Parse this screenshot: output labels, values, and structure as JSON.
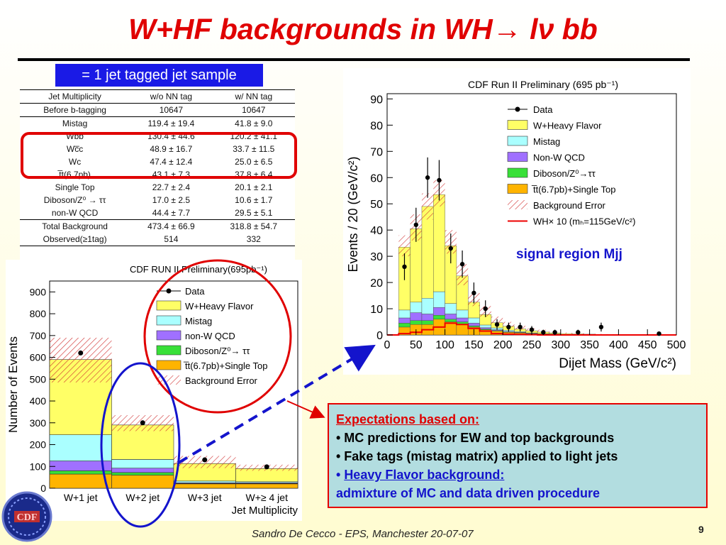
{
  "slide": {
    "title": "W+HF backgrounds in WH→ lν bb",
    "tag_box": "= 1 jet tagged jet sample",
    "signal_label": "signal region Mjj",
    "footer": "Sandro De Cecco  -  EPS, Manchester 20-07-07",
    "page_number": "9",
    "expectations": {
      "heading": "Expectations based on:",
      "bullets": [
        "• MC predictions for EW and top backgrounds",
        "• Fake tags (mistag matrix) applied to light jets"
      ],
      "hf_prefix": "• ",
      "hf_label": "Heavy Flavor background:",
      "hf_text": "admixture of MC and data driven procedure"
    },
    "colors": {
      "title": "#e00000",
      "accent_blue": "#1a1ae6",
      "highlight_red": "#e00000"
    }
  },
  "table": {
    "header": [
      "Jet Multiplicity",
      "w/o NN tag",
      "w/ NN tag"
    ],
    "rows": [
      [
        "Before b-tagging",
        "10647",
        "10647"
      ],
      [
        "Mistag",
        "119.4 ± 19.4",
        "41.8 ± 9.0"
      ],
      [
        "Wbb",
        "130.4 ± 44.6",
        "120.2 ± 41.1"
      ],
      [
        "Wc̅c",
        "48.9 ± 16.7",
        "33.7 ± 11.5"
      ],
      [
        "Wc",
        "47.4 ± 12.4",
        "25.0 ± 6.5"
      ],
      [
        "t̅t(6.7pb)",
        "43.1 ± 7.3",
        "37.8 ± 6.4"
      ],
      [
        "Single Top",
        "22.7 ± 2.4",
        "20.1 ± 2.1"
      ],
      [
        "Diboson/Z⁰ → ττ",
        "17.0 ± 2.5",
        "10.6 ± 1.7"
      ],
      [
        "non-W QCD",
        "44.4 ± 7.7",
        "29.5 ± 5.1"
      ],
      [
        "Total Background",
        "473.4 ± 66.9",
        "318.8 ± 54.7"
      ],
      [
        "Observed(≥1tag)",
        "514",
        "332"
      ]
    ]
  },
  "chart_data": [
    {
      "type": "bar",
      "title": "CDF RUN II Preliminary(695pb⁻¹)",
      "xlabel": "Jet Multiplicity",
      "ylabel": "Number of Events",
      "categories": [
        "W+1 jet",
        "W+2 jet",
        "W+3 jet",
        "W+≥ 4 jet"
      ],
      "ylim": [
        0,
        950
      ],
      "yticks": [
        0,
        100,
        200,
        300,
        400,
        500,
        600,
        700,
        800,
        900
      ],
      "stack_bottom_to_top": true,
      "series": [
        {
          "name": "t̅t(6.7pb)+Single Top",
          "color": "#ffb400",
          "values": [
            65,
            60,
            20,
            20
          ]
        },
        {
          "name": "Diboson/Z⁰→ ττ",
          "color": "#38e038",
          "values": [
            15,
            12,
            2,
            2
          ]
        },
        {
          "name": "non-W QCD",
          "color": "#a070ff",
          "values": [
            45,
            20,
            3,
            3
          ]
        },
        {
          "name": "Mistag",
          "color": "#aaffff",
          "values": [
            120,
            40,
            8,
            5
          ]
        },
        {
          "name": "W+Heavy Flavor",
          "color": "#ffff66",
          "values": [
            345,
            158,
            80,
            60
          ]
        }
      ],
      "background_error": [
        [
          485,
          690
        ],
        [
          262,
          335
        ],
        [
          92,
          148
        ],
        [
          80,
          108
        ]
      ],
      "data": {
        "name": "Data",
        "values": [
          620,
          300,
          130,
          98
        ]
      },
      "legend": [
        "Data",
        "W+Heavy Flavor",
        "Mistag",
        "non-W QCD",
        "Diboson/Z⁰→ ττ",
        "t̅t(6.7pb)+Single Top",
        "Background Error"
      ],
      "legend_position": "top-right"
    },
    {
      "type": "bar",
      "title": "CDF Run II Preliminary (695 pb⁻¹)",
      "xlabel": "Dijet Mass (GeV/c²)",
      "ylabel": "Events / 20 (GeV/c²)",
      "x_edges": [
        0,
        20,
        40,
        60,
        80,
        100,
        120,
        140,
        160,
        180,
        200,
        220,
        240,
        260,
        280,
        300,
        320,
        340,
        360,
        380,
        400,
        420,
        440,
        460,
        480,
        500
      ],
      "xlim": [
        0,
        500
      ],
      "xticks": [
        0,
        50,
        100,
        150,
        200,
        250,
        300,
        350,
        400,
        450,
        500
      ],
      "ylim": [
        0,
        92
      ],
      "yticks": [
        0,
        10,
        20,
        30,
        40,
        50,
        60,
        70,
        80,
        90
      ],
      "stack_bottom_to_top": true,
      "series": [
        {
          "name": "t̅t(6.7pb)+Single Top",
          "color": "#ffb400",
          "values": [
            0,
            3,
            4,
            4,
            6,
            5,
            4,
            3,
            2,
            1.5,
            1,
            0.8,
            0.5,
            0.4,
            0.3,
            0.2,
            0.2,
            0.1,
            0.1,
            0,
            0,
            0,
            0,
            0,
            0
          ]
        },
        {
          "name": "Diboson/Z⁰→ττ",
          "color": "#38e038",
          "values": [
            0,
            1.5,
            1.5,
            1.5,
            1.5,
            1,
            1,
            0.5,
            0.3,
            0.2,
            0.1,
            0.1,
            0,
            0,
            0,
            0,
            0,
            0,
            0,
            0,
            0,
            0,
            0,
            0,
            0
          ]
        },
        {
          "name": "Non-W QCD",
          "color": "#a070ff",
          "values": [
            0,
            2,
            3,
            2.5,
            3,
            2,
            1.5,
            1,
            0.5,
            0.3,
            0.2,
            0.1,
            0.1,
            0,
            0,
            0,
            0,
            0,
            0,
            0,
            0,
            0,
            0,
            0,
            0
          ]
        },
        {
          "name": "Mistag",
          "color": "#aaffff",
          "values": [
            0,
            3,
            4,
            6,
            6,
            4,
            3,
            2,
            1,
            0.7,
            0.5,
            0.3,
            0.2,
            0.1,
            0.1,
            0,
            0,
            0,
            0,
            0,
            0,
            0,
            0,
            0,
            0
          ]
        },
        {
          "name": "W+Heavy Flavor",
          "color": "#ffff66",
          "values": [
            0,
            24,
            28,
            35,
            37,
            22,
            13,
            6,
            4,
            2,
            1.5,
            1,
            0.8,
            0.6,
            0.4,
            0.3,
            0.2,
            0.2,
            0.1,
            0.1,
            0,
            0,
            0,
            0,
            0
          ]
        }
      ],
      "background_error": [
        [
          0,
          0
        ],
        [
          30,
          38
        ],
        [
          36,
          46
        ],
        [
          44,
          54
        ],
        [
          49,
          59
        ],
        [
          31,
          40
        ],
        [
          19,
          27
        ],
        [
          11,
          16
        ],
        [
          7,
          11
        ],
        [
          4,
          7
        ],
        [
          3,
          5
        ],
        [
          2,
          3.5
        ],
        [
          1.5,
          2.5
        ],
        [
          1,
          2
        ],
        [
          0.7,
          1.3
        ],
        [
          0.4,
          0.9
        ],
        [
          0.3,
          0.7
        ],
        [
          0.2,
          0.5
        ],
        [
          0.1,
          0.4
        ],
        [
          0.1,
          0.3
        ],
        [
          0,
          0.2
        ],
        [
          0,
          0.2
        ],
        [
          0,
          0.1
        ],
        [
          0,
          0.1
        ],
        [
          0,
          0
        ]
      ],
      "signal": {
        "name": "WH× 10 (mₕ=115GeV/c²)",
        "color": "#ee0000",
        "values": [
          0,
          0.5,
          1,
          2,
          3,
          4.5,
          4,
          2.5,
          1.5,
          0.5,
          0.3,
          0.2,
          0.1,
          0,
          0,
          0,
          0,
          0,
          0,
          0,
          0,
          0,
          0,
          0,
          0
        ]
      },
      "data": {
        "name": "Data",
        "x": [
          30,
          50,
          70,
          90,
          110,
          130,
          150,
          170,
          190,
          210,
          230,
          250,
          270,
          290,
          330,
          370,
          470
        ],
        "y": [
          26,
          42,
          60,
          59,
          33,
          27,
          16,
          10,
          4,
          3,
          3,
          2,
          1,
          1,
          1,
          3,
          0.5
        ],
        "yerr": [
          5.1,
          6.5,
          7.7,
          7.7,
          5.7,
          5.2,
          4,
          3.2,
          2,
          1.7,
          1.7,
          1.4,
          1,
          1,
          1,
          1.7,
          0.7
        ]
      },
      "legend": [
        "Data",
        "W+Heavy Flavor",
        "Mistag",
        "Non-W QCD",
        "Diboson/Z⁰→ττ",
        "t̅t(6.7pb)+Single Top",
        "Background Error",
        "WH× 10 (mₕ=115GeV/c²)"
      ],
      "legend_position": "top-right"
    }
  ]
}
